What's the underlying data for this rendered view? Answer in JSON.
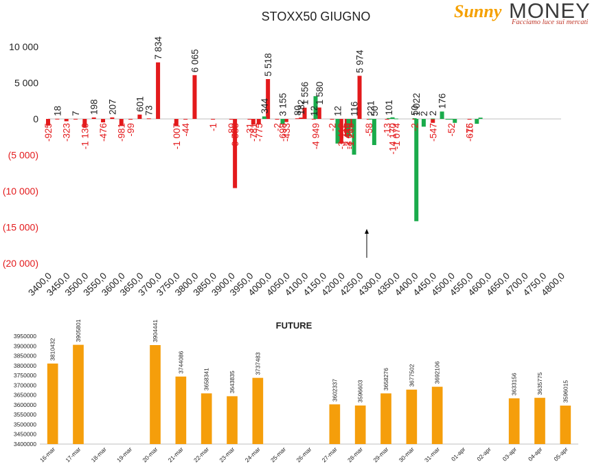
{
  "brand": {
    "name_part1": "Sunny",
    "name_part2": "MONEY",
    "tagline": "Facciamo luce sui mercati"
  },
  "colors": {
    "red": "#e31a1c",
    "green": "#1aab4b",
    "orange": "#f59e0b",
    "text": "#222222"
  },
  "chart_data": [
    {
      "type": "bar",
      "title": "STOXX50 GIUGNO",
      "ylim": [
        -20000,
        10000
      ],
      "y_ticks": [
        10000,
        5000,
        0,
        -5000,
        -10000,
        -15000,
        -20000
      ],
      "y_tick_labels": [
        "10 000",
        "5 000",
        "0",
        "(5 000)",
        "(10 000)",
        "(15 000)",
        "(20 000)"
      ],
      "x_tick_labels": [
        "3400,0",
        "3450,0",
        "3500,0",
        "3550,0",
        "3600,0",
        "3650,0",
        "3700,0",
        "3750,0",
        "3800,0",
        "3850,0",
        "3900,0",
        "3950,0",
        "4000,0",
        "4050,0",
        "4100,0",
        "4150,0",
        "4200,0",
        "4250,0",
        "4300,0",
        "4350,0",
        "4400,0",
        "4450,0",
        "4500,0",
        "4550,0",
        "4600,0",
        "4650,0",
        "4700,0",
        "4750,0",
        "4800,0"
      ],
      "series": [
        {
          "color": "red",
          "values": [
            [
              3400,
              -925
            ],
            [
              3425,
              18
            ],
            [
              3450,
              -323
            ],
            [
              3475,
              7
            ],
            [
              3500,
              -1130
            ],
            [
              3525,
              198
            ],
            [
              3550,
              -476
            ],
            [
              3575,
              207
            ],
            [
              3600,
              -981
            ],
            [
              3625,
              -99
            ],
            [
              3650,
              601
            ],
            [
              3675,
              73
            ],
            [
              3700,
              7834
            ],
            [
              3750,
              -1007
            ],
            [
              3775,
              -44
            ],
            [
              3800,
              6065
            ],
            [
              3850,
              -1
            ],
            [
              3900,
              -80
            ],
            [
              3910,
              -9583
            ],
            [
              3950,
              -31
            ],
            [
              3960,
              -781
            ],
            [
              3975,
              -775
            ],
            [
              4000,
              5518
            ],
            [
              4025,
              -2
            ],
            [
              4040,
              -698
            ],
            [
              4050,
              -433
            ],
            [
              4080,
              80
            ],
            [
              4090,
              182
            ],
            [
              4100,
              1556
            ],
            [
              4125,
              12
            ],
            [
              4140,
              1580
            ],
            [
              4175,
              -2
            ],
            [
              4200,
              -3412
            ],
            [
              4215,
              -2449
            ],
            [
              4225,
              -1205
            ],
            [
              4250,
              5974
            ],
            [
              4275,
              -58
            ],
            [
              4325,
              -13
            ],
            [
              4400,
              -2
            ],
            [
              4450,
              -547
            ],
            [
              4500,
              -52
            ],
            [
              4550,
              -16
            ]
          ]
        },
        {
          "color": "green",
          "values": [
            [
              3990,
              344
            ],
            [
              4040,
              -698
            ],
            [
              4130,
              3155
            ],
            [
              4190,
              -3412
            ],
            [
              4220,
              -2449
            ],
            [
              4235,
              -4949
            ],
            [
              4280,
              12
            ],
            [
              4290,
              -3619
            ],
            [
              4330,
              116
            ],
            [
              4340,
              221
            ],
            [
              4350,
              50
            ],
            [
              4400,
              101
            ],
            [
              4405,
              -14170
            ],
            [
              4425,
              -1074
            ],
            [
              4450,
              50
            ],
            [
              4475,
              1022
            ],
            [
              4490,
              2
            ],
            [
              4500,
              2
            ],
            [
              4510,
              -547
            ],
            [
              4570,
              -675
            ],
            [
              4580,
              176
            ]
          ]
        }
      ],
      "labels_red": [
        "-925",
        "18",
        "-323",
        "7",
        "-1 130",
        "198",
        "-476",
        "207",
        "-981",
        "-99",
        "601",
        "73",
        "7 834",
        "-1 007",
        "-44",
        "6 065",
        "-1",
        "-80",
        "-9 583",
        "-31",
        "-781",
        "-775",
        "5 518",
        "-2",
        "-698",
        "-433",
        "80",
        "182",
        "1 556",
        "12",
        "1 580",
        "-2",
        "-3 412",
        "-2 449",
        "-1 205",
        "5 974",
        "-58",
        "-13",
        "-2",
        "-547",
        "-52",
        "-16",
        "-675"
      ],
      "labels_green": [
        "344",
        "3 155",
        "-4 949",
        "12",
        "-3 619",
        "116",
        "221",
        "50",
        "101",
        "-14 170",
        "-1 074",
        "50",
        "1 022",
        "2",
        "2",
        "176"
      ]
    },
    {
      "type": "bar",
      "title": "FUTURE",
      "ylim": [
        3400000,
        3950000
      ],
      "y_tick_labels": [
        "3950000",
        "3900000",
        "3850000",
        "3800000",
        "3750000",
        "3700000",
        "3650000",
        "3600000",
        "3550000",
        "3500000",
        "3450000",
        "3400000"
      ],
      "categories": [
        "16-mar",
        "17-mar",
        "18-mar",
        "19-mar",
        "20-mar",
        "21-mar",
        "22-mar",
        "23-mar",
        "24-mar",
        "25-mar",
        "26-mar",
        "27-mar",
        "28-mar",
        "29-mar",
        "30-mar",
        "31-mar",
        "01-apr",
        "02-apr",
        "03-apr",
        "04-apr",
        "05-apr"
      ],
      "values": [
        3810432,
        3905801,
        null,
        null,
        3904441,
        3744086,
        3658341,
        3643835,
        3737483,
        null,
        null,
        3602337,
        3596603,
        3658276,
        3677502,
        3692106,
        null,
        null,
        3633156,
        3635775,
        3596015
      ],
      "value_labels": [
        "3810432",
        "3905801",
        "",
        "",
        "3904441",
        "3744086",
        "3658341",
        "3643835",
        "3737483",
        "",
        "",
        "3602337",
        "3596603",
        "3658276",
        "3677502",
        "3692106",
        "",
        "",
        "3633156",
        "3635775",
        "3596015"
      ]
    }
  ]
}
